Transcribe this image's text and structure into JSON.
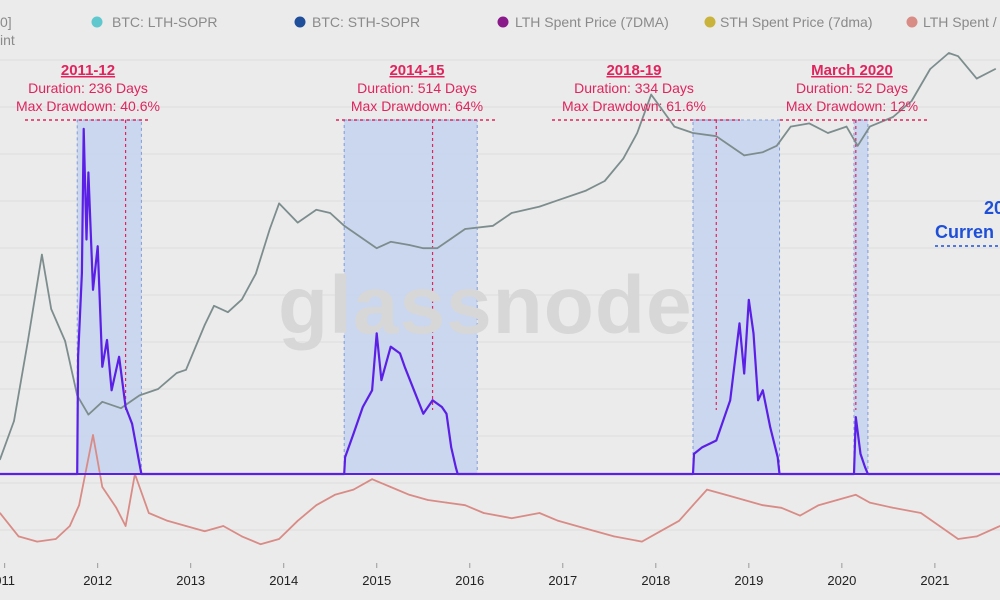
{
  "legend": [
    {
      "label": "0]",
      "color": ""
    },
    {
      "label": "BTC: LTH-SOPR",
      "color": "#5fc8cf"
    },
    {
      "label": "BTC: STH-SOPR",
      "color": "#1f4e9a"
    },
    {
      "label": "LTH Spent Price (7DMA)",
      "color": "#8a1a8a"
    },
    {
      "label": "STH Spent Price (7dma)",
      "color": "#c9b33a"
    },
    {
      "label": "LTH Spent /",
      "color": "#d98b86"
    }
  ],
  "legend_sub": "int",
  "watermark": "glassnode",
  "current": {
    "year": "20",
    "label": "Curren"
  },
  "annotations": [
    {
      "title": "2011-12",
      "duration": "Duration: 236 Days",
      "drawdown": "Max Drawdown: 40.6%"
    },
    {
      "title": "2014-15",
      "duration": "Duration: 514 Days",
      "drawdown": "Max Drawdown: 64%"
    },
    {
      "title": "2018-19",
      "duration": "Duration: 334 Days",
      "drawdown": "Max Drawdown: 61.6%"
    },
    {
      "title": "March 2020",
      "duration": "Duration: 52 Days",
      "drawdown": "Max Drawdown: 12%"
    }
  ],
  "chart_data": {
    "type": "line",
    "x_ticks": [
      "011",
      "2012",
      "2013",
      "2014",
      "2015",
      "2016",
      "2017",
      "2018",
      "2019",
      "2020",
      "2021"
    ],
    "x_range": [
      2011.0,
      2021.75
    ],
    "colors": {
      "price": "#7d8d8d",
      "metric": "#5b1fe6",
      "ratio": "#d98b86",
      "band": "#c5d3ee",
      "annotation": "#e0245e"
    },
    "shaded_periods": [
      {
        "start": 2011.83,
        "end": 2012.52,
        "low_marker": 2012.35
      },
      {
        "start": 2014.7,
        "end": 2016.13,
        "low_marker": 2015.65
      },
      {
        "start": 2018.45,
        "end": 2019.38,
        "low_marker": 2018.7
      },
      {
        "start": 2020.18,
        "end": 2020.33,
        "low_marker": 2020.2
      }
    ],
    "series": [
      {
        "key": "price",
        "points": [
          [
            2011.0,
            0.08
          ],
          [
            2011.15,
            0.2
          ],
          [
            2011.3,
            0.45
          ],
          [
            2011.45,
            0.72
          ],
          [
            2011.55,
            0.55
          ],
          [
            2011.7,
            0.45
          ],
          [
            2011.83,
            0.28
          ],
          [
            2011.95,
            0.22
          ],
          [
            2012.1,
            0.26
          ],
          [
            2012.3,
            0.24
          ],
          [
            2012.5,
            0.28
          ],
          [
            2012.7,
            0.3
          ],
          [
            2012.9,
            0.35
          ],
          [
            2013.0,
            0.36
          ],
          [
            2013.2,
            0.5
          ],
          [
            2013.3,
            0.56
          ],
          [
            2013.45,
            0.54
          ],
          [
            2013.6,
            0.58
          ],
          [
            2013.75,
            0.66
          ],
          [
            2013.9,
            0.8
          ],
          [
            2014.0,
            0.88
          ],
          [
            2014.2,
            0.82
          ],
          [
            2014.4,
            0.86
          ],
          [
            2014.55,
            0.85
          ],
          [
            2014.7,
            0.81
          ],
          [
            2014.9,
            0.77
          ],
          [
            2015.05,
            0.74
          ],
          [
            2015.2,
            0.76
          ],
          [
            2015.4,
            0.75
          ],
          [
            2015.55,
            0.74
          ],
          [
            2015.7,
            0.74
          ],
          [
            2015.85,
            0.77
          ],
          [
            2016.0,
            0.8
          ],
          [
            2016.3,
            0.81
          ],
          [
            2016.5,
            0.85
          ],
          [
            2016.8,
            0.87
          ],
          [
            2017.0,
            0.89
          ],
          [
            2017.3,
            0.92
          ],
          [
            2017.5,
            0.95
          ],
          [
            2017.7,
            1.02
          ],
          [
            2017.85,
            1.1
          ],
          [
            2018.0,
            1.22
          ],
          [
            2018.1,
            1.18
          ],
          [
            2018.25,
            1.12
          ],
          [
            2018.45,
            1.1
          ],
          [
            2018.7,
            1.09
          ],
          [
            2018.9,
            1.05
          ],
          [
            2019.0,
            1.03
          ],
          [
            2019.2,
            1.04
          ],
          [
            2019.35,
            1.06
          ],
          [
            2019.5,
            1.12
          ],
          [
            2019.7,
            1.13
          ],
          [
            2019.9,
            1.1
          ],
          [
            2020.1,
            1.12
          ],
          [
            2020.22,
            1.06
          ],
          [
            2020.35,
            1.12
          ],
          [
            2020.6,
            1.15
          ],
          [
            2020.8,
            1.2
          ],
          [
            2021.0,
            1.3
          ],
          [
            2021.2,
            1.35
          ],
          [
            2021.3,
            1.34
          ],
          [
            2021.5,
            1.27
          ],
          [
            2021.7,
            1.3
          ]
        ]
      },
      {
        "key": "metric",
        "points": [
          [
            2011.0,
            0
          ],
          [
            2011.83,
            0
          ],
          [
            2011.84,
            0.35
          ],
          [
            2011.88,
            0.6
          ],
          [
            2011.9,
            1.03
          ],
          [
            2011.93,
            0.7
          ],
          [
            2011.95,
            0.9
          ],
          [
            2012.0,
            0.55
          ],
          [
            2012.05,
            0.68
          ],
          [
            2012.1,
            0.32
          ],
          [
            2012.15,
            0.4
          ],
          [
            2012.2,
            0.25
          ],
          [
            2012.28,
            0.35
          ],
          [
            2012.35,
            0.2
          ],
          [
            2012.42,
            0.15
          ],
          [
            2012.5,
            0.03
          ],
          [
            2012.52,
            0
          ],
          [
            2014.7,
            0
          ],
          [
            2014.71,
            0.05
          ],
          [
            2014.8,
            0.12
          ],
          [
            2014.9,
            0.2
          ],
          [
            2015.0,
            0.25
          ],
          [
            2015.05,
            0.42
          ],
          [
            2015.1,
            0.28
          ],
          [
            2015.2,
            0.38
          ],
          [
            2015.3,
            0.36
          ],
          [
            2015.35,
            0.32
          ],
          [
            2015.45,
            0.25
          ],
          [
            2015.55,
            0.18
          ],
          [
            2015.65,
            0.22
          ],
          [
            2015.75,
            0.2
          ],
          [
            2015.8,
            0.18
          ],
          [
            2015.85,
            0.08
          ],
          [
            2015.9,
            0.02
          ],
          [
            2015.92,
            0
          ],
          [
            2016.13,
            0
          ],
          [
            2018.45,
            0
          ],
          [
            2018.46,
            0.06
          ],
          [
            2018.55,
            0.08
          ],
          [
            2018.7,
            0.1
          ],
          [
            2018.85,
            0.22
          ],
          [
            2018.95,
            0.45
          ],
          [
            2019.0,
            0.3
          ],
          [
            2019.05,
            0.52
          ],
          [
            2019.1,
            0.42
          ],
          [
            2019.15,
            0.22
          ],
          [
            2019.2,
            0.25
          ],
          [
            2019.28,
            0.14
          ],
          [
            2019.36,
            0.05
          ],
          [
            2019.38,
            0
          ],
          [
            2020.18,
            0
          ],
          [
            2020.2,
            0.17
          ],
          [
            2020.25,
            0.06
          ],
          [
            2020.3,
            0.02
          ],
          [
            2020.33,
            0
          ],
          [
            2021.75,
            0
          ]
        ]
      },
      {
        "key": "ratio",
        "points": [
          [
            2011.0,
            -0.05
          ],
          [
            2011.2,
            -0.14
          ],
          [
            2011.4,
            -0.16
          ],
          [
            2011.6,
            -0.15
          ],
          [
            2011.75,
            -0.1
          ],
          [
            2011.85,
            -0.02
          ],
          [
            2012.0,
            0.25
          ],
          [
            2012.1,
            0.05
          ],
          [
            2012.25,
            -0.03
          ],
          [
            2012.35,
            -0.1
          ],
          [
            2012.45,
            0.1
          ],
          [
            2012.6,
            -0.05
          ],
          [
            2012.8,
            -0.08
          ],
          [
            2013.0,
            -0.1
          ],
          [
            2013.2,
            -0.12
          ],
          [
            2013.4,
            -0.1
          ],
          [
            2013.6,
            -0.14
          ],
          [
            2013.8,
            -0.17
          ],
          [
            2014.0,
            -0.15
          ],
          [
            2014.2,
            -0.08
          ],
          [
            2014.4,
            -0.02
          ],
          [
            2014.6,
            0.02
          ],
          [
            2014.8,
            0.04
          ],
          [
            2015.0,
            0.08
          ],
          [
            2015.2,
            0.05
          ],
          [
            2015.4,
            0.02
          ],
          [
            2015.6,
            0.0
          ],
          [
            2015.8,
            -0.01
          ],
          [
            2016.0,
            -0.02
          ],
          [
            2016.2,
            -0.05
          ],
          [
            2016.5,
            -0.07
          ],
          [
            2016.8,
            -0.05
          ],
          [
            2017.0,
            -0.08
          ],
          [
            2017.3,
            -0.11
          ],
          [
            2017.6,
            -0.14
          ],
          [
            2017.9,
            -0.16
          ],
          [
            2018.1,
            -0.12
          ],
          [
            2018.3,
            -0.08
          ],
          [
            2018.45,
            -0.02
          ],
          [
            2018.6,
            0.04
          ],
          [
            2018.8,
            0.02
          ],
          [
            2019.0,
            0.0
          ],
          [
            2019.2,
            -0.02
          ],
          [
            2019.4,
            -0.03
          ],
          [
            2019.6,
            -0.06
          ],
          [
            2019.8,
            -0.02
          ],
          [
            2020.0,
            0.0
          ],
          [
            2020.2,
            0.02
          ],
          [
            2020.35,
            -0.01
          ],
          [
            2020.6,
            -0.03
          ],
          [
            2020.9,
            -0.05
          ],
          [
            2021.1,
            -0.1
          ],
          [
            2021.3,
            -0.15
          ],
          [
            2021.5,
            -0.14
          ],
          [
            2021.75,
            -0.1
          ]
        ]
      }
    ]
  }
}
